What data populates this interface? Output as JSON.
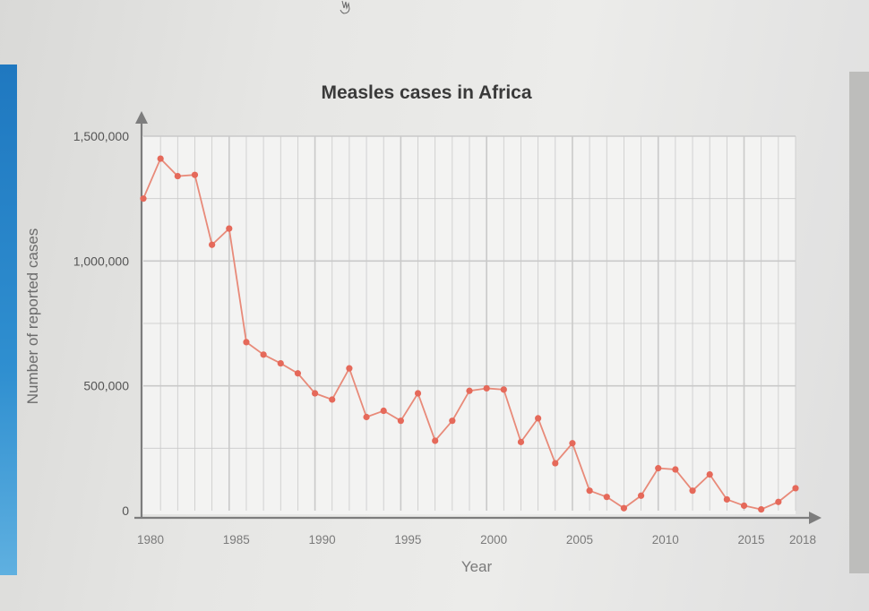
{
  "chart_data": {
    "type": "line",
    "title": "Measles cases in Africa",
    "xlabel": "Year",
    "ylabel": "Number of reported cases",
    "xlim": [
      1980,
      2018
    ],
    "ylim": [
      0,
      1500000
    ],
    "x_ticks": [
      "1980",
      "1985",
      "1990",
      "1995",
      "2000",
      "2005",
      "2010",
      "2015",
      "2018"
    ],
    "y_ticks": [
      "0",
      "500,000",
      "1,000,000",
      "1,500,000"
    ],
    "grid": true,
    "legend": "none",
    "colors": {
      "line": "#e88a79",
      "marker": "#e5695a",
      "grid": "#c9c9c9",
      "axis": "#808080",
      "plot_bg": "#f3f3f2"
    },
    "series": [
      {
        "x": [
          1980,
          1981,
          1982,
          1983,
          1984,
          1985,
          1986,
          1987,
          1988,
          1989,
          1990,
          1991,
          1992,
          1993,
          1994,
          1995,
          1996,
          1997,
          1998,
          1999,
          2000,
          2001,
          2002,
          2003,
          2004,
          2005,
          2006,
          2007,
          2008,
          2009,
          2010,
          2011,
          2012,
          2013,
          2014,
          2015,
          2016,
          2017,
          2018
        ],
        "values": [
          1250000,
          1410000,
          1340000,
          1345000,
          1065000,
          1130000,
          675000,
          625000,
          590000,
          550000,
          470000,
          445000,
          570000,
          375000,
          400000,
          360000,
          470000,
          280000,
          360000,
          480000,
          490000,
          485000,
          275000,
          370000,
          190000,
          270000,
          80000,
          55000,
          10000,
          60000,
          170000,
          165000,
          80000,
          145000,
          45000,
          20000,
          5000,
          35000,
          90000
        ]
      }
    ]
  }
}
